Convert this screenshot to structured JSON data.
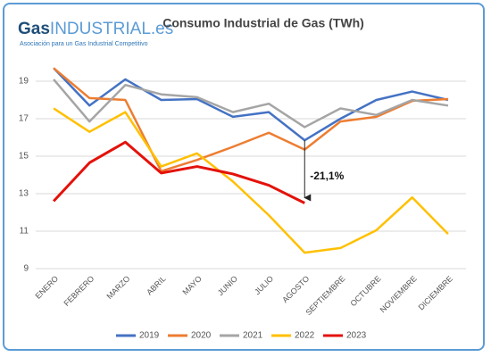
{
  "logo": {
    "main": "Gas",
    "rest": "INDUSTRIAL.es",
    "tagline": "Asociación para un Gas Industrial Competitivo"
  },
  "chart_data": {
    "type": "line",
    "title": "Consumo Industrial de Gas (TWh)",
    "categories": [
      "ENERO",
      "FEBRERO",
      "MARZO",
      "ABRIL",
      "MAYO",
      "JUNIO",
      "JULIO",
      "AGOSTO",
      "SEPTIEMBRE",
      "OCTUBRE",
      "NOVIEMBRE",
      "DICIEMBRE"
    ],
    "series": [
      {
        "name": "2019",
        "color": "#4472c4",
        "values": [
          19.7,
          17.7,
          19.1,
          18.0,
          18.05,
          17.1,
          17.35,
          15.85,
          17.0,
          18.0,
          18.45,
          18.0
        ]
      },
      {
        "name": "2020",
        "color": "#ed7d31",
        "values": [
          19.7,
          18.1,
          18.0,
          14.2,
          14.8,
          15.5,
          16.25,
          15.35,
          16.85,
          17.1,
          17.95,
          18.05
        ]
      },
      {
        "name": "2021",
        "color": "#a5a5a5",
        "values": [
          19.1,
          16.85,
          18.8,
          18.3,
          18.15,
          17.35,
          17.8,
          16.55,
          17.55,
          17.2,
          18.0,
          17.7
        ]
      },
      {
        "name": "2022",
        "color": "#ffc000",
        "values": [
          17.55,
          16.3,
          17.35,
          14.45,
          15.15,
          13.65,
          11.85,
          9.85,
          10.1,
          11.05,
          12.8,
          10.85
        ]
      },
      {
        "name": "2023",
        "color": "#e3120b",
        "values": [
          12.6,
          14.65,
          15.75,
          14.1,
          14.45,
          14.05,
          13.45,
          12.5,
          null,
          null,
          null,
          null
        ]
      }
    ],
    "annotations": [
      {
        "text": "-21,1%"
      }
    ],
    "ylim": [
      9,
      20
    ],
    "yticks": [
      9,
      11,
      13,
      15,
      17,
      19
    ],
    "grid": true,
    "legend": "bottom"
  }
}
